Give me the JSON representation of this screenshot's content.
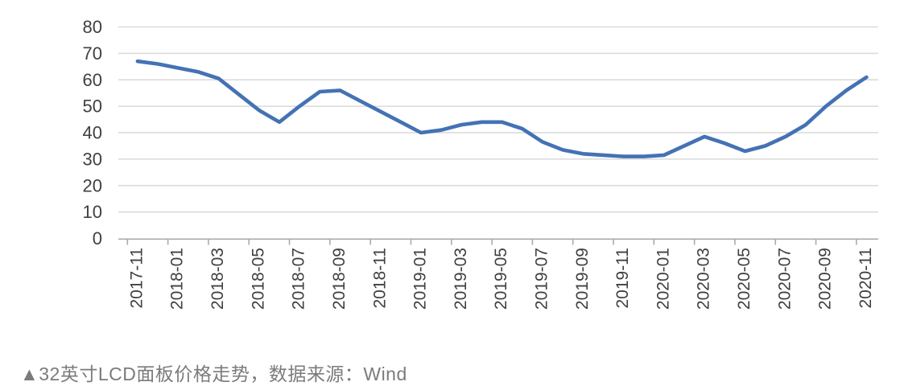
{
  "caption": "▲32英寸LCD面板价格走势，数据来源：Wind",
  "colors": {
    "line": "#4472b4",
    "grid": "#d9d9d9",
    "axis": "#ababab",
    "tick_label": "#404040",
    "caption": "#7b7b7b",
    "background": "#ffffff"
  },
  "chart_data": {
    "type": "line",
    "title": "32英寸LCD面板价格走势",
    "source": "Wind",
    "x": [
      "2017-11",
      "2017-12",
      "2018-01",
      "2018-02",
      "2018-03",
      "2018-04",
      "2018-05",
      "2018-06",
      "2018-07",
      "2018-08",
      "2018-09",
      "2018-10",
      "2018-11",
      "2018-12",
      "2019-01",
      "2019-02",
      "2019-03",
      "2019-04",
      "2019-05",
      "2019-06",
      "2019-07",
      "2019-08",
      "2019-09",
      "2019-10",
      "2019-11",
      "2019-12",
      "2020-01",
      "2020-02",
      "2020-03",
      "2020-04",
      "2020-05",
      "2020-06",
      "2020-07",
      "2020-08",
      "2020-09",
      "2020-10",
      "2020-11"
    ],
    "values": [
      67,
      66,
      64.5,
      63,
      60.5,
      54.5,
      48.5,
      44,
      50,
      55.5,
      56,
      52,
      48,
      44,
      40,
      41,
      43,
      44,
      44,
      41.5,
      36.5,
      33.5,
      32,
      31.5,
      31,
      31,
      31.5,
      35,
      38.5,
      36,
      33,
      35,
      38.5,
      43,
      50,
      56,
      61
    ],
    "x_tick_labels": [
      "2017-11",
      "2018-01",
      "2018-03",
      "2018-05",
      "2018-07",
      "2018-09",
      "2018-11",
      "2019-01",
      "2019-03",
      "2019-05",
      "2019-07",
      "2019-09",
      "2019-11",
      "2020-01",
      "2020-03",
      "2020-05",
      "2020-07",
      "2020-09",
      "2020-11"
    ],
    "y_ticks": [
      0,
      10,
      20,
      30,
      40,
      50,
      60,
      70,
      80
    ],
    "ylim": [
      0,
      80
    ],
    "grid": "horizontal",
    "legend": "none"
  }
}
